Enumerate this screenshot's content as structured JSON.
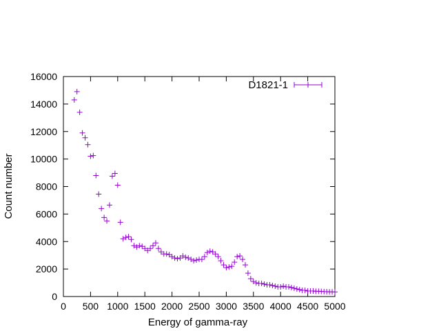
{
  "chart_data": {
    "type": "scatter",
    "xlabel": "Energy of gamma-ray",
    "ylabel": "Count number",
    "xlim": [
      0,
      5000
    ],
    "ylim": [
      0,
      16000
    ],
    "xticks": [
      "0",
      "500",
      "1000",
      "1500",
      "2000",
      "2500",
      "3000",
      "3500",
      "4000",
      "4500",
      "5000"
    ],
    "yticks": [
      "0",
      "2000",
      "4000",
      "6000",
      "8000",
      "10000",
      "12000",
      "14000",
      "16000"
    ],
    "grid": false,
    "legend_position": "top-right",
    "series": [
      {
        "name": "D1821-1",
        "color": "#9400d3",
        "marker": "plus",
        "x": [
          200,
          250,
          300,
          350,
          400,
          450,
          500,
          550,
          600,
          650,
          700,
          750,
          800,
          850,
          900,
          950,
          1000,
          1050,
          1100,
          1150,
          1200,
          1250,
          1300,
          1350,
          1400,
          1450,
          1500,
          1550,
          1600,
          1650,
          1700,
          1750,
          1800,
          1850,
          1900,
          1950,
          2000,
          2050,
          2100,
          2150,
          2200,
          2250,
          2300,
          2350,
          2400,
          2450,
          2500,
          2550,
          2600,
          2650,
          2700,
          2750,
          2800,
          2850,
          2900,
          2950,
          3000,
          3050,
          3100,
          3150,
          3200,
          3250,
          3300,
          3350,
          3400,
          3450,
          3500,
          3550,
          3600,
          3650,
          3700,
          3750,
          3800,
          3850,
          3900,
          3950,
          4000,
          4050,
          4100,
          4150,
          4200,
          4250,
          4300,
          4350,
          4400,
          4450,
          4500,
          4550,
          4600,
          4650,
          4700,
          4750,
          4800,
          4850,
          4900,
          4950,
          5000
        ],
        "y": [
          14300,
          14900,
          13400,
          11900,
          11550,
          11050,
          10200,
          10250,
          8800,
          7450,
          6400,
          5750,
          5500,
          6650,
          8750,
          8950,
          8100,
          5400,
          4200,
          4300,
          4350,
          4150,
          3700,
          3600,
          3700,
          3650,
          3500,
          3350,
          3500,
          3700,
          3900,
          3500,
          3250,
          3100,
          3100,
          3050,
          2900,
          2800,
          2750,
          2800,
          2950,
          2850,
          2800,
          2700,
          2600,
          2650,
          2700,
          2700,
          2900,
          3200,
          3300,
          3250,
          3100,
          2900,
          2600,
          2300,
          2100,
          2150,
          2200,
          2500,
          2900,
          2950,
          2700,
          2300,
          1700,
          1300,
          1100,
          1000,
          950,
          950,
          900,
          850,
          850,
          800,
          750,
          700,
          700,
          750,
          700,
          700,
          650,
          600,
          550,
          500,
          450,
          450,
          400,
          400,
          400,
          380,
          380,
          370,
          360,
          350,
          340,
          340,
          330
        ]
      }
    ]
  }
}
